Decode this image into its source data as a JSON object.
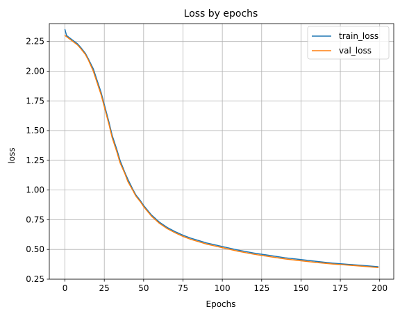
{
  "chart_data": {
    "type": "line",
    "title": "Loss by epochs",
    "xlabel": "Epochs",
    "ylabel": "loss",
    "xlim": [
      -9.95,
      208.95
    ],
    "ylim": [
      0.25,
      2.4
    ],
    "xticks": [
      0,
      25,
      50,
      75,
      100,
      125,
      150,
      175,
      200
    ],
    "yticks": [
      0.25,
      0.5,
      0.75,
      1.0,
      1.25,
      1.5,
      1.75,
      2.0,
      2.25
    ],
    "xtick_labels": [
      "0",
      "25",
      "50",
      "75",
      "100",
      "125",
      "150",
      "175",
      "200"
    ],
    "ytick_labels": [
      "0.25",
      "0.50",
      "0.75",
      "1.00",
      "1.25",
      "1.50",
      "1.75",
      "2.00",
      "2.25"
    ],
    "grid": true,
    "legend_position": "top-right",
    "series": [
      {
        "name": "train_loss",
        "color": "#1f77b4",
        "x": [
          0,
          1,
          3,
          5,
          8,
          10,
          13,
          15,
          18,
          20,
          23,
          25,
          28,
          30,
          33,
          35,
          38,
          40,
          43,
          45,
          48,
          50,
          55,
          60,
          65,
          70,
          75,
          80,
          85,
          90,
          95,
          100,
          110,
          120,
          130,
          140,
          150,
          160,
          170,
          180,
          190,
          199
        ],
        "values": [
          2.35,
          2.3,
          2.28,
          2.26,
          2.23,
          2.2,
          2.15,
          2.1,
          2.02,
          1.94,
          1.82,
          1.72,
          1.57,
          1.46,
          1.34,
          1.25,
          1.15,
          1.09,
          1.01,
          0.96,
          0.91,
          0.87,
          0.79,
          0.73,
          0.685,
          0.65,
          0.62,
          0.595,
          0.575,
          0.555,
          0.54,
          0.525,
          0.495,
          0.47,
          0.45,
          0.43,
          0.415,
          0.4,
          0.385,
          0.375,
          0.365,
          0.355
        ]
      },
      {
        "name": "val_loss",
        "color": "#ff7f0e",
        "x": [
          0,
          1,
          3,
          5,
          8,
          10,
          13,
          15,
          18,
          20,
          23,
          25,
          28,
          30,
          33,
          35,
          38,
          40,
          43,
          45,
          48,
          50,
          55,
          60,
          65,
          70,
          75,
          80,
          85,
          90,
          95,
          100,
          110,
          120,
          130,
          140,
          150,
          160,
          170,
          180,
          190,
          199
        ],
        "values": [
          2.3,
          2.29,
          2.27,
          2.25,
          2.22,
          2.19,
          2.14,
          2.09,
          2.0,
          1.92,
          1.8,
          1.7,
          1.55,
          1.44,
          1.32,
          1.23,
          1.14,
          1.07,
          1.0,
          0.95,
          0.9,
          0.86,
          0.78,
          0.72,
          0.675,
          0.64,
          0.61,
          0.585,
          0.565,
          0.545,
          0.53,
          0.515,
          0.485,
          0.46,
          0.44,
          0.42,
          0.405,
          0.39,
          0.378,
          0.368,
          0.358,
          0.348
        ]
      }
    ]
  }
}
